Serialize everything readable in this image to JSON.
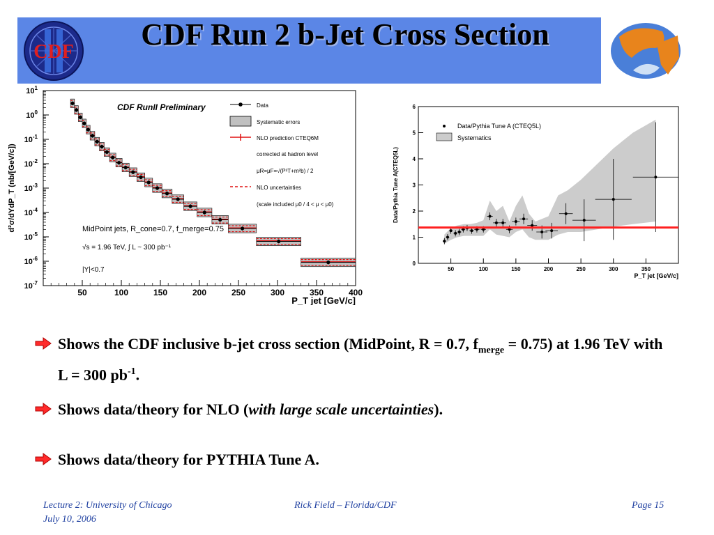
{
  "slide": {
    "title": "CDF Run 2 b-Jet Cross Section",
    "logo_left_text": "CDF",
    "accent": "#5b86e6"
  },
  "bullets": [
    {
      "pre": "Shows the CDF inclusive b-jet cross section (MidPoint, R = 0.7, f",
      "sub": "merge",
      "mid": " = 0.75) at 1.96 TeV with L = 300 pb",
      "sup": "-1",
      "post": "."
    },
    {
      "pre": "Shows data/theory for NLO (",
      "italic": "with large scale uncertainties",
      "post": ")."
    },
    {
      "pre": "Shows data/theory for PYTHIA Tune A."
    }
  ],
  "footer": {
    "left_line1": "Lecture 2: University of Chicago",
    "left_line2": "July 10, 2006",
    "center": "Rick Field – Florida/CDF",
    "right": "Page 15"
  },
  "chart_data": [
    {
      "type": "scatter",
      "title": "CDF RunII Preliminary",
      "xlabel": "P_T jet [GeV/c]",
      "ylabel": "d²σ/dYdP_T (nb/[GeV/c])",
      "xlim": [
        0,
        400
      ],
      "ylim_log10": [
        -7,
        1
      ],
      "xticks": [
        50,
        100,
        150,
        200,
        250,
        300,
        350,
        400
      ],
      "yticks_exp": [
        -7,
        -6,
        -5,
        -4,
        -3,
        -2,
        -1,
        0,
        1
      ],
      "legend": [
        "Data",
        "Systematic errors",
        "NLO prediction CTEQ6M",
        "corrected at hadron level",
        "μR=μF=√(P²T+m²b) / 2",
        "NLO uncertainties",
        "(scale included μ0 / 4 < μ < μ0)"
      ],
      "annotations": [
        "MidPoint jets, R_cone=0.7, f_merge=0.75",
        "√s = 1.96 TeV, ∫ L ~ 300 pb⁻¹",
        "|Y|<0.7"
      ],
      "bins": [
        {
          "lo": 35,
          "hi": 40,
          "y": 3.0
        },
        {
          "lo": 40,
          "hi": 45,
          "y": 1.6
        },
        {
          "lo": 45,
          "hi": 50,
          "y": 0.8
        },
        {
          "lo": 50,
          "hi": 55,
          "y": 0.45
        },
        {
          "lo": 55,
          "hi": 60,
          "y": 0.25
        },
        {
          "lo": 60,
          "hi": 66,
          "y": 0.14
        },
        {
          "lo": 66,
          "hi": 72,
          "y": 0.08
        },
        {
          "lo": 72,
          "hi": 78,
          "y": 0.05
        },
        {
          "lo": 78,
          "hi": 85,
          "y": 0.03
        },
        {
          "lo": 85,
          "hi": 93,
          "y": 0.018
        },
        {
          "lo": 93,
          "hi": 101,
          "y": 0.011
        },
        {
          "lo": 101,
          "hi": 110,
          "y": 0.007
        },
        {
          "lo": 110,
          "hi": 120,
          "y": 0.0045
        },
        {
          "lo": 120,
          "hi": 130,
          "y": 0.0028
        },
        {
          "lo": 130,
          "hi": 140,
          "y": 0.0017
        },
        {
          "lo": 140,
          "hi": 152,
          "y": 0.001
        },
        {
          "lo": 152,
          "hi": 165,
          "y": 0.0006
        },
        {
          "lo": 165,
          "hi": 180,
          "y": 0.00035
        },
        {
          "lo": 180,
          "hi": 197,
          "y": 0.00018
        },
        {
          "lo": 197,
          "hi": 216,
          "y": 0.0001
        },
        {
          "lo": 216,
          "hi": 237,
          "y": 5e-05
        },
        {
          "lo": 237,
          "hi": 273,
          "y": 2.2e-05
        },
        {
          "lo": 273,
          "hi": 330,
          "y": 6.5e-06
        },
        {
          "lo": 330,
          "hi": 400,
          "y": 9e-07
        }
      ]
    },
    {
      "type": "scatter",
      "xlabel": "P_T jet [GeV/c]",
      "ylabel": "Data/Pythia Tune A(CTEQ5L)",
      "xlim": [
        0,
        400
      ],
      "ylim": [
        0,
        6
      ],
      "xticks": [
        50,
        100,
        150,
        200,
        250,
        300,
        350
      ],
      "yticks": [
        0,
        1,
        2,
        3,
        4,
        5,
        6
      ],
      "legend": [
        "Data/Pythia Tune A (CTEQ5L)",
        "Systematics"
      ],
      "reference_line": 1.37,
      "reference_color": "#ff2020",
      "points": [
        {
          "x": 40,
          "y": 0.85,
          "xerr": 2.5,
          "yerr": 0.12
        },
        {
          "x": 45,
          "y": 1.0,
          "xerr": 2.5,
          "yerr": 0.12
        },
        {
          "x": 50,
          "y": 1.25,
          "xerr": 2.5,
          "yerr": 0.12
        },
        {
          "x": 57,
          "y": 1.15,
          "xerr": 3,
          "yerr": 0.12
        },
        {
          "x": 63,
          "y": 1.2,
          "xerr": 3,
          "yerr": 0.12
        },
        {
          "x": 69,
          "y": 1.3,
          "xerr": 3,
          "yerr": 0.12
        },
        {
          "x": 75,
          "y": 1.35,
          "xerr": 3,
          "yerr": 0.12
        },
        {
          "x": 82,
          "y": 1.25,
          "xerr": 3.5,
          "yerr": 0.12
        },
        {
          "x": 90,
          "y": 1.3,
          "xerr": 4,
          "yerr": 0.12
        },
        {
          "x": 100,
          "y": 1.3,
          "xerr": 4,
          "yerr": 0.12
        },
        {
          "x": 110,
          "y": 1.8,
          "xerr": 4.5,
          "yerr": 0.15
        },
        {
          "x": 120,
          "y": 1.55,
          "xerr": 5,
          "yerr": 0.15
        },
        {
          "x": 130,
          "y": 1.55,
          "xerr": 5,
          "yerr": 0.15
        },
        {
          "x": 140,
          "y": 1.3,
          "xerr": 5,
          "yerr": 0.15
        },
        {
          "x": 150,
          "y": 1.6,
          "xerr": 6,
          "yerr": 0.15
        },
        {
          "x": 162,
          "y": 1.7,
          "xerr": 6.5,
          "yerr": 0.2
        },
        {
          "x": 175,
          "y": 1.45,
          "xerr": 7.5,
          "yerr": 0.2
        },
        {
          "x": 190,
          "y": 1.2,
          "xerr": 8.5,
          "yerr": 0.25
        },
        {
          "x": 205,
          "y": 1.25,
          "xerr": 9.5,
          "yerr": 0.3
        },
        {
          "x": 227,
          "y": 1.9,
          "xerr": 10.5,
          "yerr": 0.4
        },
        {
          "x": 255,
          "y": 1.65,
          "xerr": 18,
          "yerr": 0.8
        },
        {
          "x": 300,
          "y": 2.45,
          "xerr": 28,
          "yerr": 1.55
        },
        {
          "x": 365,
          "y": 3.3,
          "xerr": 35,
          "yerr": 2.1
        }
      ],
      "systematics_band": {
        "x": [
          40,
          50,
          60,
          70,
          80,
          90,
          100,
          110,
          120,
          130,
          140,
          150,
          160,
          170,
          180,
          190,
          200,
          215,
          230,
          250,
          275,
          300,
          330,
          365
        ],
        "lower": [
          0.75,
          0.9,
          1.0,
          1.05,
          1.05,
          1.05,
          1.05,
          1.3,
          1.1,
          1.05,
          1.0,
          1.2,
          1.3,
          1.0,
          0.9,
          0.9,
          0.9,
          1.1,
          1.2,
          1.2,
          1.3,
          1.4,
          1.5,
          1.6
        ],
        "upper": [
          1.1,
          1.35,
          1.45,
          1.5,
          1.5,
          1.55,
          1.65,
          2.4,
          2.0,
          2.2,
          1.6,
          2.2,
          2.6,
          1.9,
          1.6,
          1.7,
          1.8,
          2.6,
          2.8,
          3.2,
          3.8,
          4.4,
          5.0,
          5.5
        ]
      }
    }
  ]
}
